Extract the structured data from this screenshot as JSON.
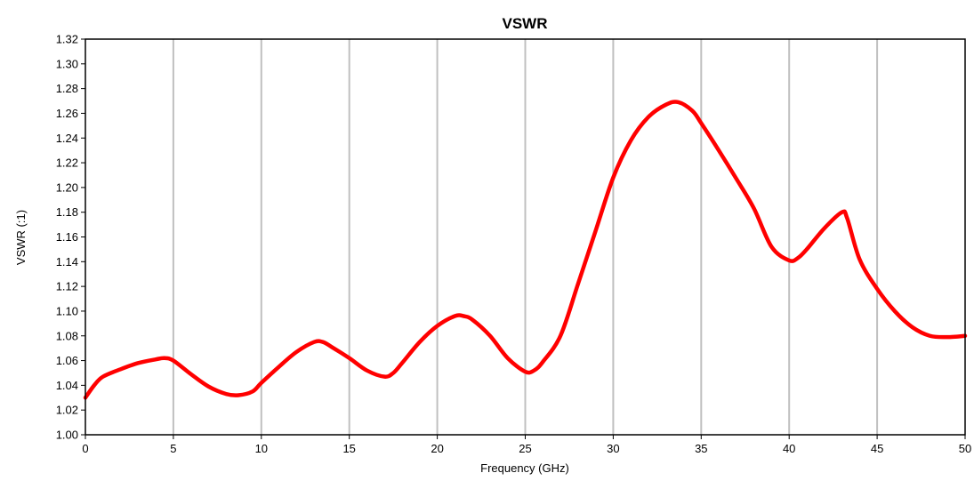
{
  "chart_data": {
    "type": "line",
    "title": "VSWR",
    "xlabel": "Frequency (GHz)",
    "ylabel": "VSWR (:1)",
    "xlim": [
      0,
      50
    ],
    "ylim": [
      1.0,
      1.32
    ],
    "x_ticks": [
      "0",
      "5",
      "10",
      "15",
      "20",
      "25",
      "30",
      "35",
      "40",
      "45",
      "50"
    ],
    "y_ticks": [
      "1.00",
      "1.02",
      "1.04",
      "1.06",
      "1.08",
      "1.10",
      "1.12",
      "1.14",
      "1.16",
      "1.18",
      "1.20",
      "1.22",
      "1.24",
      "1.26",
      "1.28",
      "1.30",
      "1.32"
    ],
    "x_grid": true,
    "y_grid": false,
    "series": [
      {
        "color": "#ff0000",
        "x": [
          0,
          0.5,
          1,
          2,
          3,
          4,
          4.5,
          5,
          6,
          7,
          8,
          8.7,
          9.5,
          10,
          11,
          12,
          13,
          13.5,
          14,
          15,
          16,
          17,
          17.5,
          18,
          19,
          20,
          21,
          21.5,
          22,
          23,
          24,
          25,
          25.5,
          26,
          27,
          28,
          29,
          30,
          31,
          32,
          33,
          33.7,
          34.5,
          35,
          36,
          37,
          38,
          39,
          40,
          40.5,
          41,
          42,
          43,
          43.3,
          44,
          45,
          46,
          47,
          48,
          49,
          50
        ],
        "y": [
          1.03,
          1.04,
          1.047,
          1.053,
          1.058,
          1.061,
          1.062,
          1.06,
          1.049,
          1.039,
          1.033,
          1.032,
          1.035,
          1.042,
          1.055,
          1.067,
          1.075,
          1.075,
          1.071,
          1.062,
          1.052,
          1.047,
          1.05,
          1.058,
          1.075,
          1.088,
          1.096,
          1.096,
          1.093,
          1.08,
          1.062,
          1.051,
          1.052,
          1.059,
          1.08,
          1.122,
          1.165,
          1.208,
          1.238,
          1.257,
          1.267,
          1.269,
          1.262,
          1.252,
          1.23,
          1.207,
          1.183,
          1.152,
          1.141,
          1.143,
          1.15,
          1.167,
          1.18,
          1.175,
          1.142,
          1.118,
          1.1,
          1.087,
          1.08,
          1.079,
          1.08
        ]
      }
    ]
  }
}
